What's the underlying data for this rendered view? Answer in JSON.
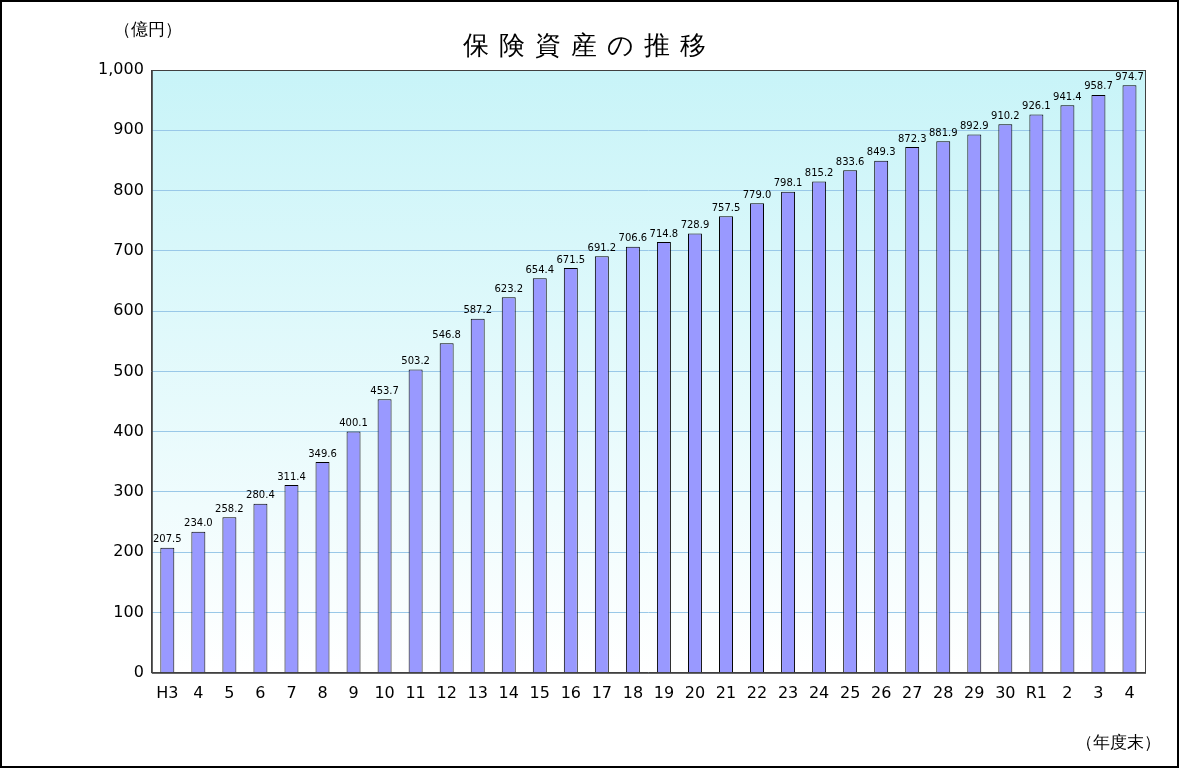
{
  "chart_data": {
    "type": "bar",
    "title": "保険資産の推移",
    "y_label": "（億円）",
    "x_label": "（年度末）",
    "categories": [
      "H3",
      "4",
      "5",
      "6",
      "7",
      "8",
      "9",
      "10",
      "11",
      "12",
      "13",
      "14",
      "15",
      "16",
      "17",
      "18",
      "19",
      "20",
      "21",
      "22",
      "23",
      "24",
      "25",
      "26",
      "27",
      "28",
      "29",
      "30",
      "R1",
      "2",
      "3",
      "4"
    ],
    "values": [
      207.5,
      234.0,
      258.2,
      280.4,
      311.4,
      349.6,
      400.1,
      453.7,
      503.2,
      546.8,
      587.2,
      623.2,
      654.4,
      671.5,
      691.2,
      706.6,
      714.8,
      728.9,
      757.5,
      779.0,
      798.1,
      815.2,
      833.6,
      849.3,
      872.3,
      881.9,
      892.9,
      910.2,
      926.1,
      941.4,
      958.7,
      974.7
    ],
    "value_labels": [
      "207.5",
      "234.0",
      "258.2",
      "280.4",
      "311.4",
      "349.6",
      "400.1",
      "453.7",
      "503.2",
      "546.8",
      "587.2",
      "623.2",
      "654.4",
      "671.5",
      "691.2",
      "706.6",
      "714.8",
      "728.9",
      "757.5",
      "779.0",
      "798.1",
      "815.2",
      "833.6",
      "849.3",
      "872.3",
      "881.9",
      "892.9",
      "910.2",
      "926.1",
      "941.4",
      "958.7",
      "974.7"
    ],
    "color": "#9999ff",
    "ylim": [
      0,
      1000
    ],
    "yticks": [
      0,
      100,
      200,
      300,
      400,
      500,
      600,
      700,
      800,
      900,
      {
        "value": 1000,
        "label": "1,000"
      }
    ],
    "grid": true,
    "data_labels": true
  }
}
